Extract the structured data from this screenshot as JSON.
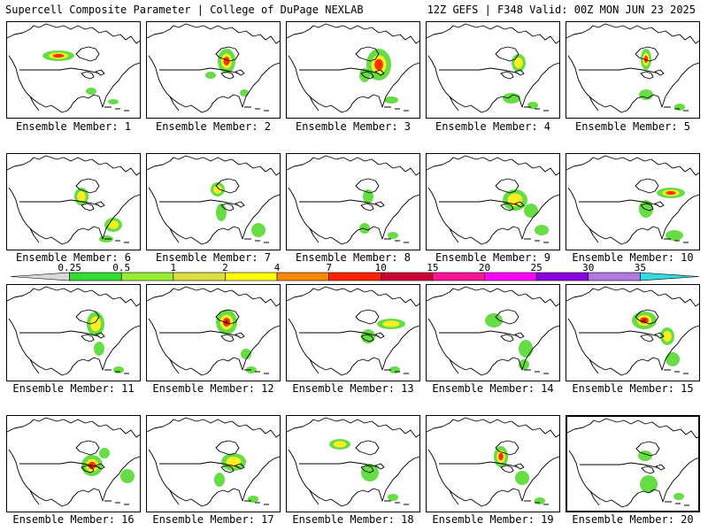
{
  "header": {
    "left_title": "Supercell Composite Parameter | College of DuPage NEXLAB",
    "right_title": "12Z GEFS | F348 Valid: 00Z MON JUN 23 2025"
  },
  "panels": [
    {
      "caption": "Ensemble Member: 1"
    },
    {
      "caption": "Ensemble Member: 2"
    },
    {
      "caption": "Ensemble Member: 3"
    },
    {
      "caption": "Ensemble Member: 4"
    },
    {
      "caption": "Ensemble Member: 5"
    },
    {
      "caption": "Ensemble Member: 6"
    },
    {
      "caption": "Ensemble Member: 7"
    },
    {
      "caption": "Ensemble Member: 8"
    },
    {
      "caption": "Ensemble Member: 9"
    },
    {
      "caption": "Ensemble Member: 10"
    },
    {
      "caption": "Ensemble Member: 11"
    },
    {
      "caption": "Ensemble Member: 12"
    },
    {
      "caption": "Ensemble Member: 13"
    },
    {
      "caption": "Ensemble Member: 14"
    },
    {
      "caption": "Ensemble Member: 15"
    },
    {
      "caption": "Ensemble Member: 16"
    },
    {
      "caption": "Ensemble Member: 17"
    },
    {
      "caption": "Ensemble Member: 18"
    },
    {
      "caption": "Ensemble Member: 19"
    },
    {
      "caption": "Ensemble Member: 20"
    }
  ],
  "colorbar": {
    "labels": [
      "0.25",
      "0.5",
      "1",
      "2",
      "4",
      "7",
      "10",
      "15",
      "20",
      "25",
      "30",
      "35"
    ],
    "colors": [
      "#d9d9d9",
      "#33dd33",
      "#99ee33",
      "#dddd44",
      "#ffff00",
      "#ff8800",
      "#ff2200",
      "#cc0033",
      "#ff1493",
      "#ff00ff",
      "#8800dd",
      "#b07ae0",
      "#33dddd"
    ]
  },
  "legend_colors": {
    "light": "#66dd44",
    "mid": "#ffee22",
    "high": "#ff3300",
    "extreme": "#bb1133"
  }
}
